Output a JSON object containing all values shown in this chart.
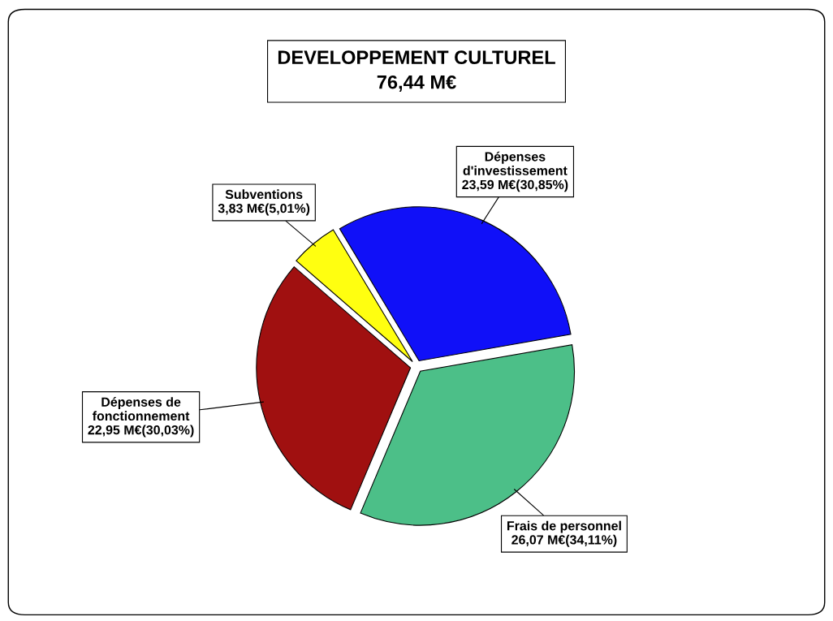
{
  "chart_data": {
    "type": "pie",
    "title": "DEVELOPPEMENT CULTUREL\n76,44 M€",
    "categories": [
      "Dépenses\nd'investissement",
      "Frais de personnel",
      "Dépenses de\nfonctionnement",
      "Subventions"
    ],
    "values": [
      23.59,
      26.07,
      22.95,
      3.83
    ],
    "value_labels": [
      "23,59 M€(30,85%)",
      "26,07 M€(34,11%)",
      "22,95 M€(30,03%)",
      "3,83 M€(5,01%)"
    ],
    "colors": [
      "#1010f8",
      "#4cbf88",
      "#a01010",
      "#ffff10"
    ],
    "legend": false
  }
}
